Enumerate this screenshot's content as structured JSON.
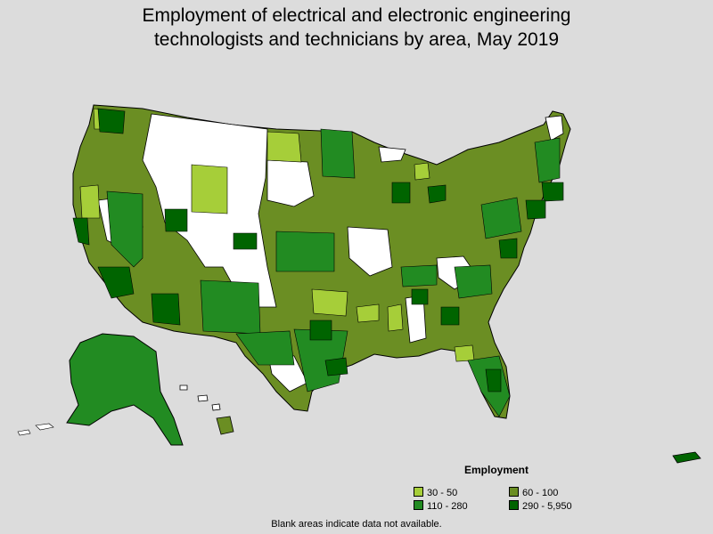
{
  "title": {
    "line1": "Employment of electrical and electronic engineering",
    "line2": "technologists and technicians by area, May 2019"
  },
  "legend": {
    "title": "Employment",
    "items": [
      {
        "label": "30 - 50",
        "color": "#a6ce39"
      },
      {
        "label": "60 - 100",
        "color": "#6b8e23"
      },
      {
        "label": "110 - 280",
        "color": "#228b22"
      },
      {
        "label": "290 - 5,950",
        "color": "#006400"
      }
    ]
  },
  "no_data_color": "#ffffff",
  "footnote": "Blank areas indicate data not available."
}
